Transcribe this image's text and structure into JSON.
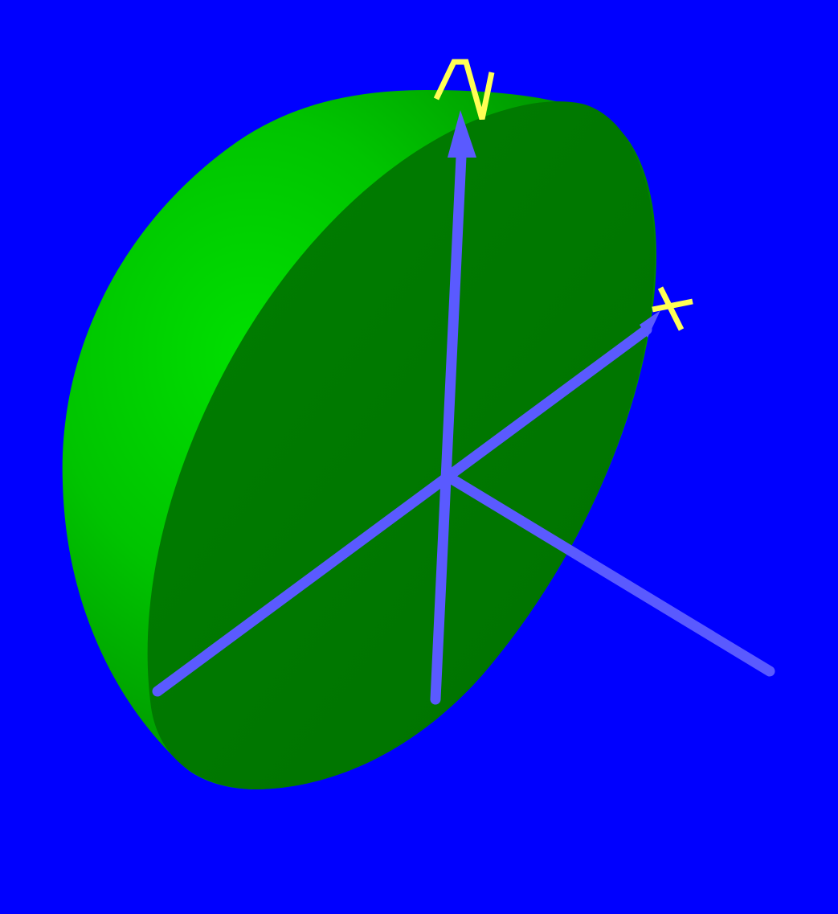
{
  "scene": {
    "background_color": "#0000ff",
    "solid": {
      "shape": "hemisphere",
      "flat_face_color": "#007800",
      "curved_surface_color": "#00d000"
    },
    "axes": {
      "color": "#5a5aff",
      "label_color": "#ffff55",
      "items": [
        {
          "id": "x",
          "label": "X",
          "has_arrow": true
        },
        {
          "id": "z",
          "label": "Z",
          "has_arrow": true
        },
        {
          "id": "y",
          "label": "",
          "has_arrow": false
        }
      ]
    }
  }
}
